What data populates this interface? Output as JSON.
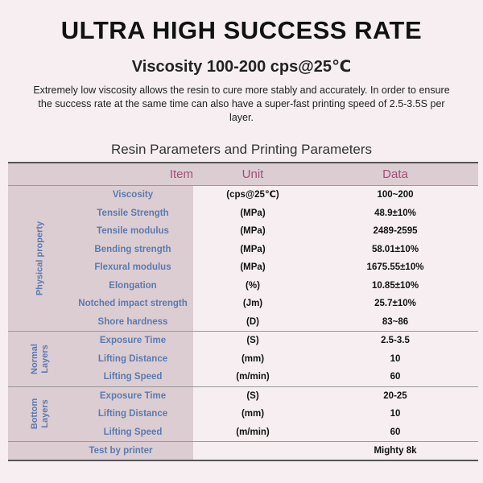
{
  "title": "ULTRA HIGH SUCCESS RATE",
  "subtitle": "Viscosity 100-200 cps@25℃",
  "description": "Extremely low viscosity allows the resin to cure more stably and accurately. In order to ensure the success rate at the same time can also have a super-fast printing speed of 2.5-3.5S per layer.",
  "table_title": "Resin Parameters and Printing Parameters",
  "headers": {
    "item": "Item",
    "unit": "Unit",
    "data": "Data"
  },
  "sections": [
    {
      "label": "Physical property",
      "rows": [
        {
          "item": "Viscosity",
          "unit": "(cps@25℃)",
          "data": "100~200"
        },
        {
          "item": "Tensile Strength",
          "unit": "(MPa)",
          "data": "48.9±10%"
        },
        {
          "item": "Tensile modulus",
          "unit": "(MPa)",
          "data": "2489-2595"
        },
        {
          "item": "Bending strength",
          "unit": "(MPa)",
          "data": "58.01±10%"
        },
        {
          "item": "Flexural modulus",
          "unit": "(MPa)",
          "data": "1675.55±10%"
        },
        {
          "item": "Elongation",
          "unit": "(%)",
          "data": "10.85±10%"
        },
        {
          "item": "Notched impact strength",
          "unit": "(Jm)",
          "data": "25.7±10%"
        },
        {
          "item": "Shore hardness",
          "unit": "(D)",
          "data": "83~86"
        }
      ]
    },
    {
      "label": "Normal\nLayers",
      "rows": [
        {
          "item": "Exposure Time",
          "unit": "(S)",
          "data": "2.5-3.5"
        },
        {
          "item": "Lifting Distance",
          "unit": "(mm)",
          "data": "10"
        },
        {
          "item": "Lifting Speed",
          "unit": "(m/min)",
          "data": "60"
        }
      ]
    },
    {
      "label": "Bottom\nLayers",
      "rows": [
        {
          "item": "Exposure Time",
          "unit": "(S)",
          "data": "20-25"
        },
        {
          "item": "Lifting Distance",
          "unit": "(mm)",
          "data": "10"
        },
        {
          "item": "Lifting Speed",
          "unit": "(m/min)",
          "data": "60"
        }
      ]
    }
  ],
  "footer": {
    "label": "Test by printer",
    "data": "Mighty 8k"
  }
}
